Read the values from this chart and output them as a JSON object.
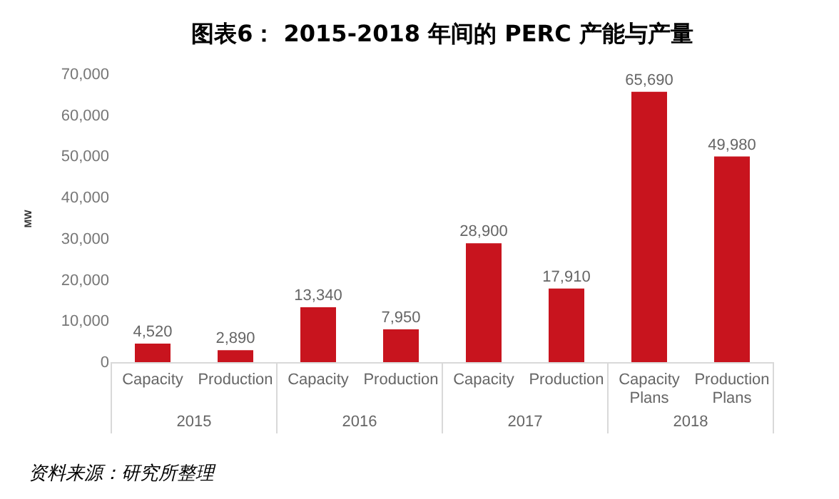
{
  "chart_data": {
    "type": "bar",
    "title": "图表6： 2015-2018 年间的 PERC 产能与产量",
    "ylabel": "MW",
    "categories": [
      "Capacity",
      "Production",
      "Capacity",
      "Production",
      "Capacity",
      "Production",
      "Capacity Plans",
      "Production Plans"
    ],
    "values": [
      4520,
      2890,
      13340,
      7950,
      28900,
      17910,
      65690,
      49980
    ],
    "value_labels": [
      "4,520",
      "2,890",
      "13,340",
      "7,950",
      "28,900",
      "17,910",
      "65,690",
      "49,980"
    ],
    "color": "#c8141e",
    "ylim": [
      0,
      70000
    ],
    "yticks": [
      0,
      {
        "value": 10000,
        "label": "10,000"
      },
      {
        "value": 20000,
        "label": "20,000"
      },
      {
        "value": 30000,
        "label": "30,000"
      },
      {
        "value": 40000,
        "label": "40,000"
      },
      {
        "value": 50000,
        "label": "50,000"
      },
      {
        "value": 60000,
        "label": "60,000"
      },
      {
        "value": 70000,
        "label": "70,000"
      }
    ],
    "grid": false,
    "annotations": [
      "2015",
      "2016",
      "2017",
      "2018",
      "资料来源：研究所整理"
    ]
  }
}
